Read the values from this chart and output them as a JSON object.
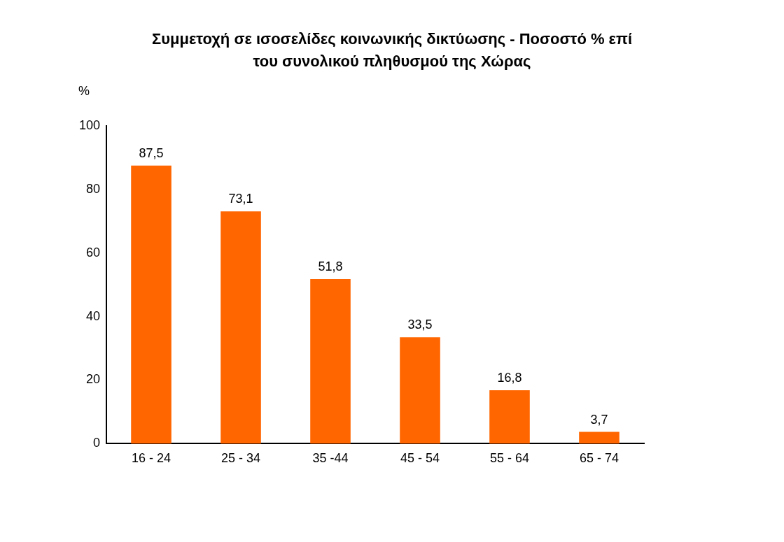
{
  "chart_data": {
    "type": "bar",
    "title": "Συμμετοχή σε ισοσελίδες κοινωνικής δικτύωσης - Ποσοστό % επί του συνολικού  πληθυσμού της Χώρας",
    "ylabel": "%",
    "categories": [
      "16 - 24",
      "25 - 34",
      "35 -44",
      "45 - 54",
      "55 - 64",
      "65 - 74"
    ],
    "values": [
      87.5,
      73.1,
      51.8,
      33.5,
      16.8,
      3.7
    ],
    "value_labels": [
      "87,5",
      "73,1",
      "51,8",
      "33,5",
      "16,8",
      "3,7"
    ],
    "color": "#ff6600",
    "ylim": [
      0,
      100
    ],
    "yticks": [
      0,
      20,
      40,
      60,
      80,
      100
    ],
    "grid": false,
    "legend": false
  }
}
